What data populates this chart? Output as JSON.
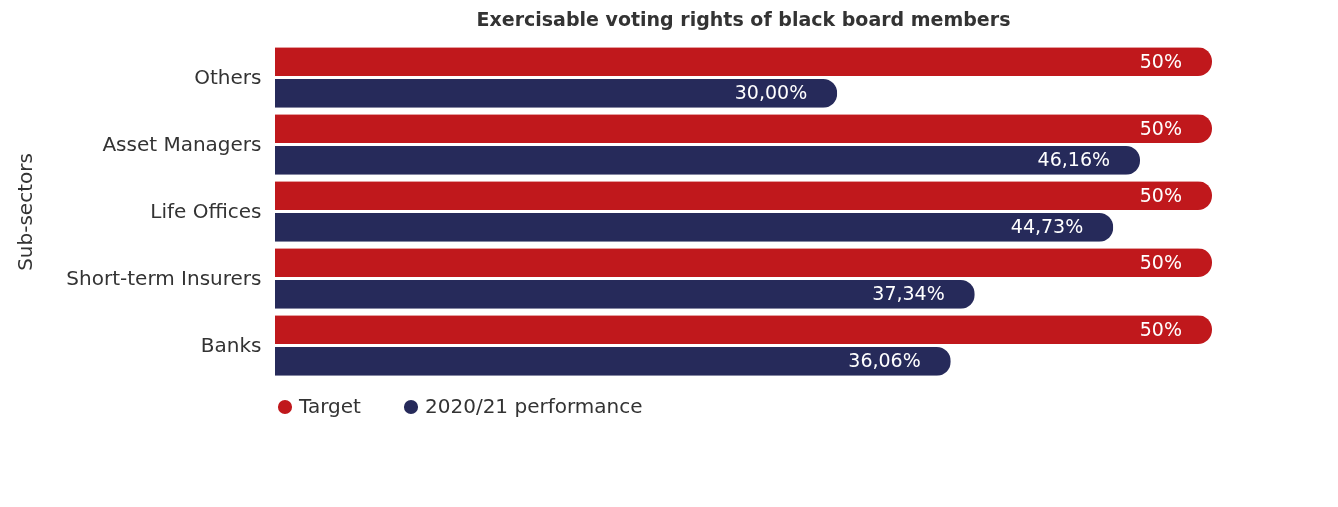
{
  "chart_data": {
    "type": "bar",
    "orientation": "horizontal",
    "title": "Exercisable voting rights of black board members",
    "ylabel": "Sub-sectors",
    "categories": [
      "Others",
      "Asset Managers",
      "Life Offices",
      "Short-term Insurers",
      "Banks"
    ],
    "series": [
      {
        "name": "Target",
        "color": "#c0181c",
        "values": [
          50,
          50,
          50,
          50,
          50
        ],
        "value_labels": [
          "50%",
          "50%",
          "50%",
          "50%",
          "50%"
        ]
      },
      {
        "name": "2020/21 performance",
        "color": "#262a5a",
        "values": [
          30.0,
          46.16,
          44.73,
          37.34,
          36.06
        ],
        "value_labels": [
          "30,00%",
          "46,16%",
          "44,73%",
          "37,34%",
          "36,06%"
        ]
      }
    ],
    "legend": "bottom"
  }
}
